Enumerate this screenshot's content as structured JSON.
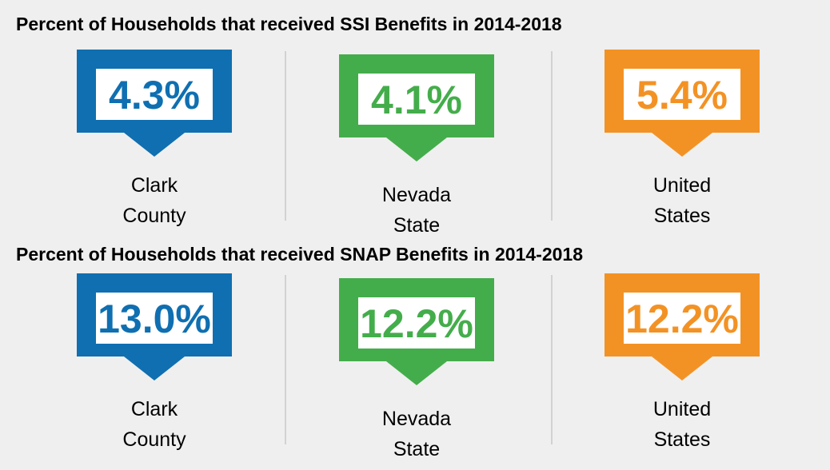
{
  "sections": [
    {
      "title": "Percent of Households that received SSI Benefits in 2014-2018",
      "items": [
        {
          "value": "4.3%",
          "label": [
            "Clark",
            "County"
          ]
        },
        {
          "value": "4.1%",
          "label": [
            "Nevada",
            "State"
          ]
        },
        {
          "value": "5.4%",
          "label": [
            "United",
            "States"
          ]
        }
      ]
    },
    {
      "title": "Percent of Households that received SNAP Benefits in 2014-2018",
      "items": [
        {
          "value": "13.0%",
          "label": [
            "Clark",
            "County"
          ]
        },
        {
          "value": "12.2%",
          "label": [
            "Nevada",
            "State"
          ]
        },
        {
          "value": "12.2%",
          "label": [
            "United",
            "States"
          ]
        }
      ]
    }
  ]
}
